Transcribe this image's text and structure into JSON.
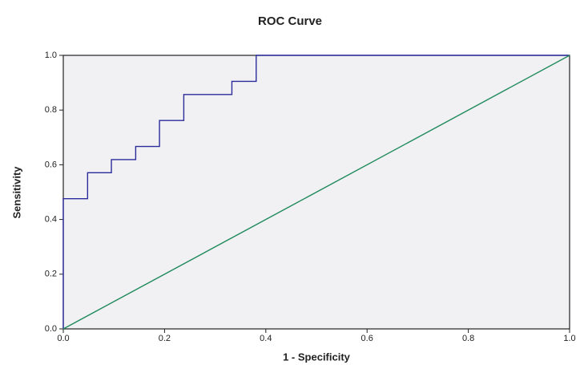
{
  "chart_data": {
    "type": "line",
    "title": "ROC Curve",
    "x_label": "1 - Specificity",
    "y_label": "Sensitivity",
    "xlim": [
      0,
      1
    ],
    "ylim": [
      0,
      1
    ],
    "xticks": [
      {
        "value": 0,
        "label": "0.0"
      },
      0.2,
      0.4,
      0.6,
      0.8,
      {
        "value": 1,
        "label": "1.0"
      }
    ],
    "yticks": [
      {
        "value": 0,
        "label": "0.0"
      },
      0.2,
      0.4,
      0.6,
      0.8,
      {
        "value": 1,
        "label": "1.0"
      }
    ],
    "series": [
      {
        "color": "#2b2b9c",
        "x": [
          0,
          0,
          0.048,
          0.048,
          0.095,
          0.095,
          0.143,
          0.143,
          0.19,
          0.19,
          0.238,
          0.238,
          0.333,
          0.333,
          0.381,
          0.381,
          1
        ],
        "values": [
          0,
          0.476,
          0.476,
          0.571,
          0.571,
          0.619,
          0.619,
          0.667,
          0.667,
          0.762,
          0.762,
          0.857,
          0.857,
          0.905,
          0.905,
          1,
          1
        ]
      },
      {
        "color": "#1f8a5c",
        "x": [
          0,
          1
        ],
        "values": [
          0,
          1
        ]
      }
    ]
  }
}
